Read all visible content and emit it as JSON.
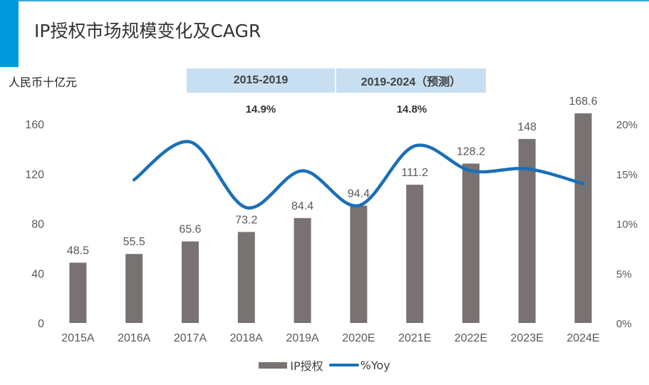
{
  "header": {
    "title": "IP授权市场规模变化及CAGR",
    "unit_label": "人民币十亿元"
  },
  "periods": [
    {
      "label": "2015-2019",
      "cagr": "14.9%"
    },
    {
      "label": "2019-2024（预测）",
      "cagr": "14.8%"
    }
  ],
  "chart_data": {
    "type": "bar",
    "categories": [
      "2015A",
      "2016A",
      "2017A",
      "2018A",
      "2019A",
      "2020E",
      "2021E",
      "2022E",
      "2023E",
      "2024E"
    ],
    "series": [
      {
        "name": "IP授权",
        "type": "bar",
        "axis": "left",
        "color": "#787372",
        "values": [
          48.5,
          55.5,
          65.6,
          73.2,
          84.4,
          94.4,
          111.2,
          128.2,
          148,
          168.6
        ],
        "labels": [
          "48.5",
          "55.5",
          "65.6",
          "73.2",
          "84.4",
          "94.4",
          "111.2",
          "128.2",
          "148",
          "168.6"
        ]
      },
      {
        "name": "%Yoy",
        "type": "line",
        "axis": "right",
        "color": "#1a6fb8",
        "values": [
          null,
          14.4,
          18.2,
          11.6,
          15.3,
          11.8,
          17.8,
          15.3,
          15.5,
          14.0
        ]
      }
    ],
    "y_left": {
      "min": 0,
      "max": 160,
      "ticks": [
        "0",
        "40",
        "80",
        "120",
        "160"
      ]
    },
    "y_right": {
      "min": 0,
      "max": 20,
      "ticks": [
        "0%",
        "5%",
        "10%",
        "15%",
        "20%"
      ]
    },
    "grid": false,
    "legend_position": "bottom"
  }
}
